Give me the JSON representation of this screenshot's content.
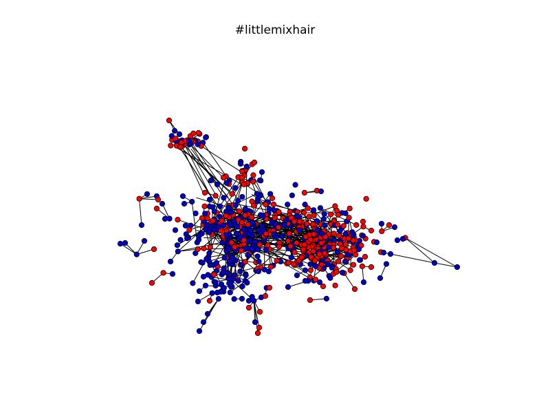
{
  "title": "#littlemixhair",
  "graph": {
    "node_colors": [
      "#ff0000",
      "#0000cc"
    ],
    "node_edge_color": "#000000",
    "edge_color": "#000000"
  }
}
